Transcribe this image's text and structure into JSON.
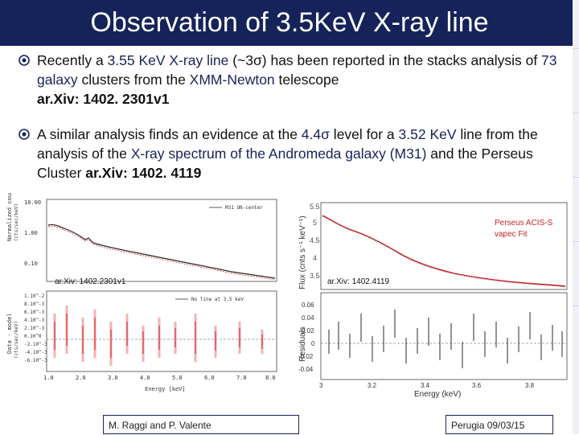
{
  "slide": {
    "title": "Observation of 3.5KeV X-ray line",
    "bullets": [
      {
        "p1": "Recently a ",
        "h1": "3.55 KeV X-ray line",
        "p2": " (~3σ) has been reported in the stacks analysis of ",
        "h2": "73 galaxy",
        "p3": " clusters from the ",
        "h3": "XMM-Newton",
        "p4": " telescope ",
        "ref": "ar.Xiv: 1402. 2301v1"
      },
      {
        "p1": "A similar analysis finds an evidence at the ",
        "h1": "4.4σ",
        "p2": " level for a ",
        "h2": "3.52 KeV",
        "p3": " line from the analysis of the ",
        "h3": "X-ray spectrum of the Andromeda galaxy (M31)",
        "p4": " and the Perseus Cluster ",
        "ref": "ar.Xiv: 1402. 4119"
      }
    ],
    "footer_left": "M. Raggi and P. Valente",
    "footer_right": "Perugia 09/03/15"
  },
  "colors": {
    "title_bg": "#16235a",
    "accent": "#16235a",
    "plot_red": "#cc2222",
    "error_pink": "#f3b3b3"
  },
  "left_plot": {
    "caption": "ar.Xiv: 1402.2301v1",
    "top_ylabel": "Normalized count rate",
    "top_yunits": "(cts/sec/keV)",
    "top_legend": "M31 ON-center",
    "top_yticks": [
      "10.00",
      "1.00",
      "0.10"
    ],
    "bottom_ylabel": "Data - model",
    "bottom_yunits": "(cts/sec/keV)",
    "bottom_legend": "No line at 3.5 keV",
    "bottom_yticks": [
      "1.10^-2",
      "8.10^-3",
      "6.10^-3",
      "4.10^-3",
      "2.10^-3",
      "0.10^0",
      "-2.10^-3",
      "-4.10^-3",
      "-6.10^-3"
    ],
    "xticks": [
      "1.0",
      "2.0",
      "3.0",
      "4.0",
      "5.0",
      "6.0",
      "7.0",
      "8.0"
    ],
    "xlabel": "Energy [keV]"
  },
  "right_plot": {
    "caption": "ar.Xiv: 1402.4119",
    "legend_line1": "Perseus ACIS-S",
    "legend_line2": "vapec Fit",
    "top_ylabel": "Flux (cnts s⁻¹ keV⁻¹)",
    "top_yticks": [
      "5.5",
      "5",
      "4.5",
      "4",
      "3.5"
    ],
    "bottom_ylabel": "Residuals",
    "bottom_yticks": [
      "0.06",
      "0.04",
      "0.02",
      "0",
      "-0.02",
      "-0.04"
    ],
    "xticks": [
      "3",
      "3.2",
      "3.4",
      "3.6",
      "3.8"
    ],
    "xlabel": "Energy (keV)"
  }
}
